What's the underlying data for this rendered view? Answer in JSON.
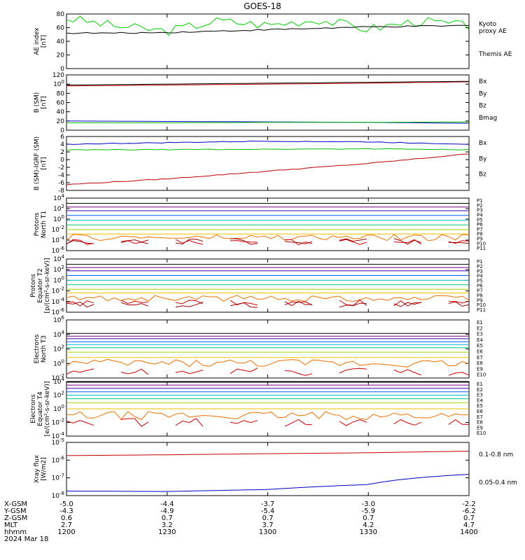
{
  "title": "GOES-18",
  "panels": [
    {
      "id": "ae",
      "ylabel": [
        "AE index",
        "[nT]"
      ],
      "ticks": [
        "0",
        "20",
        "40",
        "60",
        "80"
      ],
      "legend": [
        {
          "text": "Kyoto",
          "color": "#00d000"
        },
        {
          "text": "proxy AE",
          "color": "#00d000"
        },
        {
          "text": "Themis AE",
          "color": "#000000"
        }
      ]
    },
    {
      "id": "bsm",
      "ylabel": [
        "B (SM)",
        "[nT]"
      ],
      "ticks": [
        "0",
        "20",
        "40",
        "60",
        "80",
        "100",
        "120"
      ],
      "legend": [
        {
          "text": "Bx",
          "color": "#0000c0"
        },
        {
          "text": "By",
          "color": "#00c000"
        },
        {
          "text": "Bz",
          "color": "#c00000"
        },
        {
          "text": "Bmag",
          "color": "#000000"
        }
      ]
    },
    {
      "id": "bigrf",
      "ylabel": [
        "B (SM)-IGRF (SM)",
        "[nT]"
      ],
      "ticks": [
        "-8",
        "-6",
        "-4",
        "-2",
        "0",
        "2",
        "4",
        "6"
      ],
      "legend": [
        {
          "text": "Bx",
          "color": "#0000c0"
        },
        {
          "text": "By",
          "color": "#00c000"
        },
        {
          "text": "Bz",
          "color": "#c00000"
        }
      ]
    },
    {
      "id": "pn",
      "ylabel": [
        "Protons",
        "North T1"
      ],
      "ticks": [
        "10-6",
        "10-4",
        "10-2",
        "100",
        "102",
        "104"
      ],
      "legend": [
        "P1",
        "P2",
        "P3",
        "P4",
        "P5",
        "P6",
        "P7",
        "P8",
        "P9",
        "P10",
        "P11"
      ]
    },
    {
      "id": "pe",
      "ylabel": [
        "Protons",
        "Equator T2",
        "[p/(cm²-s-sr-keV)]"
      ],
      "ticks": [
        "10-6",
        "10-4",
        "10-2",
        "100",
        "102",
        "104"
      ],
      "legend": [
        "P1",
        "P2",
        "P3",
        "P4",
        "P5",
        "P6",
        "P7",
        "P8",
        "P9",
        "P10",
        "P11"
      ]
    },
    {
      "id": "en",
      "ylabel": [
        "Electrons",
        "North T3"
      ],
      "ticks": [
        "10-2",
        "100",
        "102",
        "104",
        "106"
      ],
      "legend": [
        "E1",
        "E2",
        "E3",
        "E4",
        "E5",
        "E6",
        "E7",
        "E8",
        "E9",
        "E10"
      ]
    },
    {
      "id": "ee",
      "ylabel": [
        "Electrons",
        "Equator T4",
        "[e/(cm²-s-sr-keV)]"
      ],
      "ticks": [
        "10-4",
        "10-2",
        "100",
        "102",
        "104"
      ],
      "legend": [
        "E1",
        "E2",
        "E3",
        "E4",
        "E5",
        "E6",
        "E7",
        "E8",
        "E9",
        "E10"
      ]
    },
    {
      "id": "xray",
      "ylabel": [
        "Xray flux",
        "[W/m2]"
      ],
      "ticks": [
        "10-8",
        "10-7",
        "10-6",
        "10-5"
      ],
      "legend": [
        {
          "text": "0.1-0.8 nm",
          "color": "#c00000"
        },
        {
          "text": "0.05-0.4 nm",
          "color": "#0000c0"
        }
      ]
    }
  ],
  "channel_colors": [
    "#000000",
    "#7a0080",
    "#3a00a8",
    "#0060ff",
    "#00b8d8",
    "#00c878",
    "#a0d000",
    "#f0c000",
    "#f07000",
    "#d00000",
    "#a00000"
  ],
  "bottom": {
    "row_labels": [
      "X-GSM",
      "Y-GSM",
      "Z-GSM",
      "MLT",
      "hhmm",
      "2024 Mar 18"
    ],
    "columns": [
      [
        "-5.0",
        "-4.3",
        "0.6",
        "2.7",
        "1200"
      ],
      [
        "-4.4",
        "-4.9",
        "0.7",
        "3.2",
        "1230"
      ],
      [
        "-3.7",
        "-5.4",
        "0.7",
        "3.7",
        "1300"
      ],
      [
        "-3.0",
        "-5.9",
        "0.7",
        "4.2",
        "1330"
      ],
      [
        "-2.2",
        "-6.2",
        "0.7",
        "4.7",
        "1400"
      ]
    ]
  },
  "chart_data": [
    {
      "type": "line",
      "title": "GOES-18",
      "ylabel": "AE index [nT]",
      "ylim": [
        0,
        80
      ],
      "x": [
        "1200",
        "1215",
        "1230",
        "1245",
        "1300",
        "1315",
        "1330",
        "1345",
        "1400"
      ],
      "series": [
        {
          "name": "Kyoto proxy AE",
          "values": [
            74,
            62,
            55,
            70,
            64,
            72,
            58,
            70,
            62
          ]
        },
        {
          "name": "Themis AE",
          "values": [
            52,
            52,
            53,
            55,
            57,
            59,
            61,
            62,
            63
          ]
        }
      ]
    },
    {
      "type": "line",
      "ylabel": "B (SM) [nT]",
      "ylim": [
        0,
        120
      ],
      "x": [
        "1200",
        "1230",
        "1300",
        "1330",
        "1400"
      ],
      "series": [
        {
          "name": "Bx",
          "values": [
            20,
            19,
            18,
            17,
            15
          ]
        },
        {
          "name": "By",
          "values": [
            16,
            16,
            17,
            17,
            18
          ]
        },
        {
          "name": "Bz",
          "values": [
            96,
            98,
            100,
            102,
            105
          ]
        },
        {
          "name": "Bmag",
          "values": [
            98,
            100,
            102,
            104,
            106
          ]
        }
      ]
    },
    {
      "type": "line",
      "ylabel": "B (SM)-IGRF (SM) [nT]",
      "ylim": [
        -8,
        6
      ],
      "x": [
        "1200",
        "1230",
        "1300",
        "1330",
        "1400"
      ],
      "series": [
        {
          "name": "Bx",
          "values": [
            4.0,
            4.4,
            4.8,
            4.6,
            4.0
          ]
        },
        {
          "name": "By",
          "values": [
            2.5,
            2.6,
            2.7,
            2.8,
            2.6
          ]
        },
        {
          "name": "Bz",
          "values": [
            -6.5,
            -5.0,
            -3.0,
            -1.0,
            1.5
          ]
        }
      ]
    },
    {
      "type": "line",
      "ylabel": "Protons North T1",
      "yscale": "log",
      "ylim": [
        1e-06,
        10000.0
      ],
      "series": [
        {
          "name": "P1",
          "values": [
            1000
          ]
        },
        {
          "name": "P2",
          "values": [
            200
          ]
        },
        {
          "name": "P3",
          "values": [
            40
          ]
        },
        {
          "name": "P4",
          "values": [
            5
          ]
        },
        {
          "name": "P5",
          "values": [
            0.6
          ]
        },
        {
          "name": "P6",
          "values": [
            0.08
          ]
        },
        {
          "name": "P7",
          "values": [
            0.01
          ]
        },
        {
          "name": "P8",
          "values": [
            0.0015
          ]
        },
        {
          "name": "P9",
          "values": [
            0.0003
          ]
        },
        {
          "name": "P10",
          "values": [
            5e-05
          ]
        },
        {
          "name": "P11",
          "values": [
            5e-05
          ]
        }
      ]
    },
    {
      "type": "line",
      "ylabel": "Protons Equator T2 [p/(cm²-s-sr-keV)]",
      "yscale": "log",
      "ylim": [
        1e-06,
        10000.0
      ],
      "series": [
        {
          "name": "P1",
          "values": [
            1000
          ]
        },
        {
          "name": "P2",
          "values": [
            250
          ]
        },
        {
          "name": "P3",
          "values": [
            60
          ]
        },
        {
          "name": "P4",
          "values": [
            8
          ]
        },
        {
          "name": "P5",
          "values": [
            1
          ]
        },
        {
          "name": "P6",
          "values": [
            0.15
          ]
        },
        {
          "name": "P7",
          "values": [
            0.02
          ]
        },
        {
          "name": "P8",
          "values": [
            0.004
          ]
        },
        {
          "name": "P9",
          "values": [
            0.0004
          ]
        },
        {
          "name": "P10",
          "values": [
            5e-05
          ]
        },
        {
          "name": "P11",
          "values": [
            3e-05
          ]
        }
      ]
    },
    {
      "type": "line",
      "ylabel": "Electrons North T3",
      "yscale": "log",
      "ylim": [
        0.001,
        1000000.0
      ],
      "series": [
        {
          "name": "E1",
          "values": [
            8000
          ]
        },
        {
          "name": "E2",
          "values": [
            3000
          ]
        },
        {
          "name": "E3",
          "values": [
            1200
          ]
        },
        {
          "name": "E4",
          "values": [
            400
          ]
        },
        {
          "name": "E5",
          "values": [
            150
          ]
        },
        {
          "name": "E6",
          "values": [
            50
          ]
        },
        {
          "name": "E7",
          "values": [
            10
          ]
        },
        {
          "name": "E8",
          "values": [
            1.5
          ]
        },
        {
          "name": "E9",
          "values": [
            0.2
          ]
        },
        {
          "name": "E10",
          "values": [
            0.01
          ]
        }
      ]
    },
    {
      "type": "line",
      "ylabel": "Electrons Equator T4 [e/(cm²-s-sr-keV)]",
      "yscale": "log",
      "ylim": [
        0.0001,
        10000.0
      ],
      "series": [
        {
          "name": "E1",
          "values": [
            8000
          ]
        },
        {
          "name": "E2",
          "values": [
            3000
          ]
        },
        {
          "name": "E3",
          "values": [
            1000
          ]
        },
        {
          "name": "E4",
          "values": [
            300
          ]
        },
        {
          "name": "E5",
          "values": [
            100
          ]
        },
        {
          "name": "E6",
          "values": [
            30
          ]
        },
        {
          "name": "E7",
          "values": [
            8
          ]
        },
        {
          "name": "E8",
          "values": [
            1
          ]
        },
        {
          "name": "E9",
          "values": [
            0.1
          ]
        },
        {
          "name": "E10",
          "values": [
            0.01
          ]
        }
      ]
    },
    {
      "type": "line",
      "ylabel": "Xray flux [W/m2]",
      "yscale": "log",
      "ylim": [
        1e-08,
        1e-05
      ],
      "x": [
        "1200",
        "1230",
        "1300",
        "1330",
        "1400"
      ],
      "series": [
        {
          "name": "0.1-0.8 nm",
          "values": [
            1.8e-06,
            2e-06,
            2.3e-06,
            2.6e-06,
            3.2e-06
          ]
        },
        {
          "name": "0.05-0.4 nm",
          "values": [
            1.8e-08,
            1.7e-08,
            2.2e-08,
            4.2e-08,
            1.6e-07
          ]
        }
      ]
    }
  ]
}
